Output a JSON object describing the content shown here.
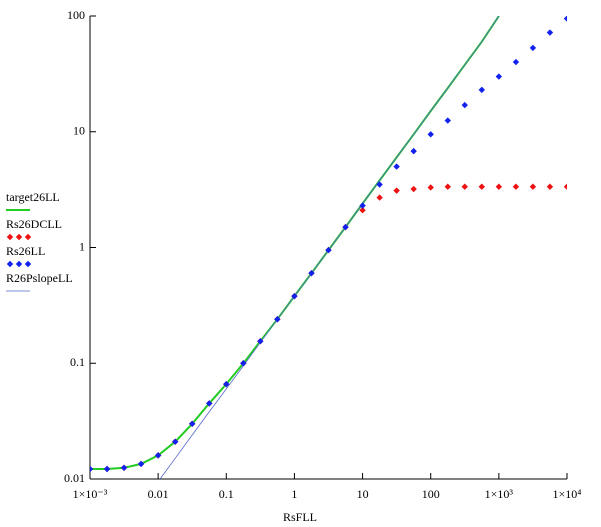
{
  "chart_data": {
    "type": "line",
    "x_label": "RsFLL",
    "xlog": true,
    "ylog": true,
    "xlim": [
      0.001,
      10000
    ],
    "ylim": [
      0.01,
      100
    ],
    "xticks": [
      {
        "value": 0.001,
        "label": "1×10⁻³"
      },
      0.01,
      0.1,
      1,
      10,
      100,
      {
        "value": 1000,
        "label": "1×10³"
      },
      {
        "value": 10000,
        "label": "1×10⁴"
      }
    ],
    "yticks": [
      0.01,
      0.1,
      1,
      10,
      100
    ],
    "x": [
      0.001,
      0.00178,
      0.00316,
      0.00562,
      0.01,
      0.0178,
      0.0316,
      0.0562,
      0.1,
      0.178,
      0.316,
      0.562,
      1,
      1.78,
      3.16,
      5.62,
      10,
      17.8,
      31.6,
      56.2,
      100,
      178,
      316,
      562,
      1000,
      1780,
      3160,
      5620,
      10000
    ],
    "series": [
      {
        "name": "target26LL",
        "color": "#22cc22",
        "mode": "line",
        "values": [
          0.0122,
          0.0122,
          0.0125,
          0.0135,
          0.016,
          0.021,
          0.03,
          0.045,
          0.066,
          0.1,
          0.155,
          0.24,
          0.38,
          0.6,
          0.95,
          1.5,
          2.4,
          3.8,
          6.0,
          9.5,
          15.1,
          23.9,
          37.9,
          60,
          100,
          null,
          null,
          null,
          null
        ]
      },
      {
        "name": "Rs26DCLL",
        "color": "#ee1111",
        "mode": "markers",
        "values": [
          0.0122,
          0.0122,
          0.0125,
          0.0135,
          0.016,
          0.021,
          0.03,
          0.045,
          0.066,
          0.1,
          0.155,
          0.24,
          0.38,
          0.6,
          0.95,
          1.5,
          2.1,
          2.7,
          3.1,
          3.2,
          3.3,
          3.35,
          3.35,
          3.35,
          3.35,
          3.35,
          3.35,
          3.35,
          3.35
        ]
      },
      {
        "name": "Rs26LL",
        "color": "#1122ee",
        "mode": "markers",
        "values": [
          0.0122,
          0.0122,
          0.0125,
          0.0135,
          0.016,
          0.021,
          0.03,
          0.045,
          0.066,
          0.1,
          0.155,
          0.24,
          0.38,
          0.6,
          0.95,
          1.5,
          2.3,
          3.5,
          5,
          6.8,
          9.5,
          12.5,
          17,
          23,
          30,
          40,
          53,
          72,
          95
        ]
      },
      {
        "name": "R26PslopeLL",
        "color": "#5566cc",
        "mode": "line",
        "values": [
          null,
          null,
          null,
          null,
          0.0095,
          0.0151,
          0.024,
          0.038,
          0.06,
          0.095,
          0.151,
          0.24,
          0.38,
          0.6,
          0.95,
          1.5,
          2.4,
          3.8,
          6.0,
          9.5,
          15.1,
          23.9,
          37.9,
          60,
          100,
          null,
          null,
          null,
          null
        ]
      }
    ]
  }
}
